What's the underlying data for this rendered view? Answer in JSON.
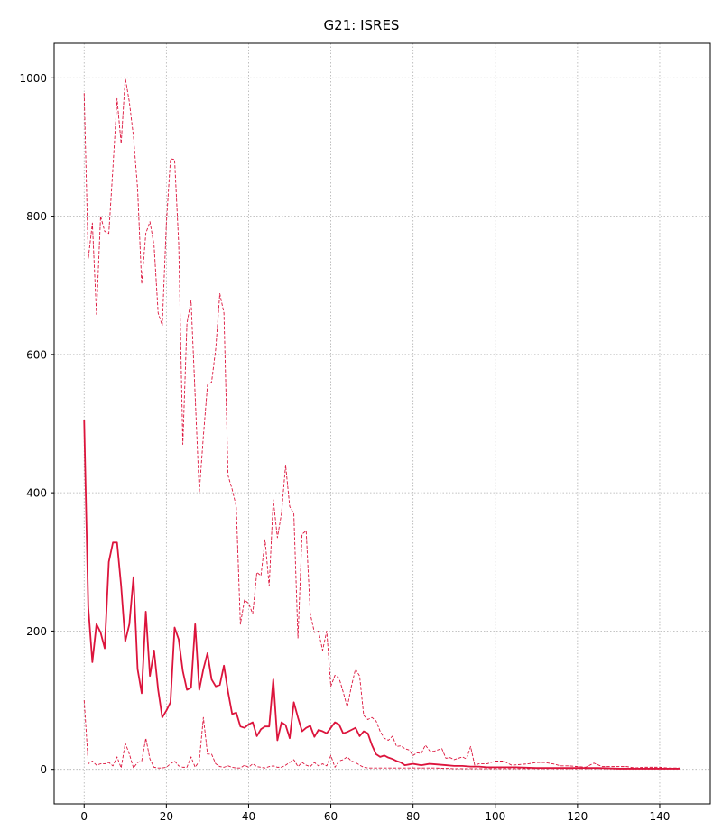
{
  "chart_data": {
    "type": "line",
    "title": "G21: ISRES",
    "xlabel": "",
    "ylabel": "",
    "xlim": [
      -7.3,
      152.3
    ],
    "ylim": [
      -50,
      1050
    ],
    "xticks": [
      0,
      20,
      40,
      60,
      80,
      100,
      120,
      140
    ],
    "xtick_labels": [
      "0",
      "20",
      "40",
      "60",
      "80",
      "100",
      "120",
      "140"
    ],
    "yticks": [
      0,
      200,
      400,
      600,
      800,
      1000
    ],
    "ytick_labels": [
      "0",
      "200",
      "400",
      "600",
      "800",
      "1000"
    ],
    "grid": true,
    "legend": "none",
    "series": [
      {
        "role": "mean",
        "style": "solid",
        "color": "#dc143c",
        "x": [
          0,
          1,
          2,
          3,
          4,
          5,
          6,
          7,
          8,
          9,
          10,
          11,
          12,
          13,
          14,
          15,
          16,
          17,
          18,
          19,
          20,
          21,
          22,
          23,
          24,
          25,
          26,
          27,
          28,
          29,
          30,
          31,
          32,
          33,
          34,
          35,
          36,
          37,
          38,
          39,
          40,
          41,
          42,
          43,
          44,
          45,
          46,
          47,
          48,
          49,
          50,
          51,
          52,
          53,
          54,
          55,
          56,
          57,
          58,
          59,
          60,
          61,
          62,
          63,
          64,
          65,
          66,
          67,
          68,
          69,
          70,
          71,
          72,
          73,
          74,
          75,
          76,
          77,
          78,
          79,
          80,
          82,
          84,
          86,
          88,
          90,
          92,
          94,
          96,
          98,
          100,
          105,
          110,
          115,
          120,
          125,
          130,
          135,
          140,
          145
        ],
        "y": [
          505,
          235,
          155,
          210,
          198,
          175,
          300,
          328,
          328,
          265,
          185,
          210,
          278,
          145,
          110,
          228,
          135,
          172,
          115,
          75,
          85,
          97,
          205,
          188,
          142,
          115,
          118,
          210,
          115,
          145,
          168,
          130,
          120,
          122,
          150,
          112,
          80,
          82,
          62,
          60,
          65,
          68,
          48,
          58,
          62,
          62,
          130,
          42,
          68,
          64,
          45,
          97,
          75,
          55,
          60,
          63,
          47,
          57,
          55,
          52,
          60,
          68,
          65,
          52,
          54,
          57,
          60,
          48,
          55,
          52,
          35,
          22,
          18,
          20,
          17,
          15,
          12,
          10,
          6,
          7,
          8,
          6,
          8,
          7,
          6,
          5,
          5,
          4,
          4,
          3,
          3,
          3,
          2,
          2,
          2,
          2,
          1,
          1,
          1,
          1
        ]
      },
      {
        "role": "max",
        "style": "dashed",
        "color": "#dc143c",
        "x": [
          0,
          1,
          2,
          3,
          4,
          5,
          6,
          7,
          8,
          9,
          10,
          11,
          12,
          13,
          14,
          15,
          16,
          17,
          18,
          19,
          20,
          21,
          22,
          23,
          24,
          25,
          26,
          27,
          28,
          29,
          30,
          31,
          32,
          33,
          34,
          35,
          36,
          37,
          38,
          39,
          40,
          41,
          42,
          43,
          44,
          45,
          46,
          47,
          48,
          49,
          50,
          51,
          52,
          53,
          54,
          55,
          56,
          57,
          58,
          59,
          60,
          61,
          62,
          63,
          64,
          65,
          66,
          67,
          68,
          69,
          70,
          71,
          72,
          73,
          74,
          75,
          76,
          77,
          78,
          79,
          80,
          81,
          82,
          83,
          84,
          85,
          86,
          87,
          88,
          89,
          90,
          91,
          92,
          93,
          94,
          95,
          96,
          98,
          100,
          102,
          104,
          106,
          108,
          110,
          112,
          114,
          116,
          118,
          120,
          122,
          124,
          126,
          128,
          130,
          132,
          134,
          136,
          138,
          140,
          142,
          145
        ],
        "y": [
          978,
          738,
          790,
          658,
          800,
          778,
          775,
          870,
          970,
          905,
          1000,
          965,
          915,
          840,
          702,
          775,
          792,
          758,
          660,
          642,
          790,
          883,
          882,
          760,
          470,
          645,
          678,
          540,
          400,
          482,
          556,
          560,
          608,
          688,
          660,
          425,
          405,
          380,
          210,
          245,
          240,
          225,
          285,
          280,
          332,
          265,
          390,
          335,
          370,
          440,
          380,
          370,
          190,
          340,
          345,
          225,
          198,
          200,
          172,
          200,
          120,
          136,
          132,
          112,
          90,
          120,
          145,
          135,
          78,
          72,
          75,
          70,
          55,
          45,
          42,
          48,
          33,
          34,
          30,
          28,
          20,
          24,
          23,
          35,
          27,
          26,
          28,
          30,
          16,
          17,
          14,
          16,
          18,
          15,
          33,
          6,
          8,
          8,
          12,
          12,
          6,
          7,
          8,
          10,
          10,
          8,
          5,
          5,
          4,
          3,
          9,
          4,
          4,
          4,
          4,
          2,
          3,
          3,
          3,
          2,
          2
        ]
      },
      {
        "role": "min",
        "style": "dashed",
        "color": "#dc143c",
        "x": [
          0,
          1,
          2,
          3,
          4,
          5,
          6,
          7,
          8,
          9,
          10,
          11,
          12,
          13,
          14,
          15,
          16,
          17,
          18,
          19,
          20,
          21,
          22,
          23,
          24,
          25,
          26,
          27,
          28,
          29,
          30,
          31,
          32,
          33,
          34,
          35,
          36,
          37,
          38,
          39,
          40,
          41,
          42,
          43,
          44,
          45,
          46,
          47,
          48,
          49,
          50,
          51,
          52,
          53,
          54,
          55,
          56,
          57,
          58,
          59,
          60,
          61,
          62,
          63,
          64,
          65,
          66,
          67,
          68,
          69,
          70,
          72,
          75,
          80,
          85,
          90,
          95,
          100,
          105,
          110,
          115,
          120,
          125,
          130,
          135,
          140,
          145
        ],
        "y": [
          100,
          8,
          12,
          6,
          8,
          8,
          10,
          5,
          18,
          2,
          38,
          22,
          2,
          10,
          12,
          45,
          15,
          3,
          2,
          2,
          3,
          8,
          12,
          5,
          3,
          3,
          18,
          3,
          12,
          75,
          22,
          22,
          8,
          4,
          3,
          5,
          3,
          2,
          2,
          6,
          3,
          8,
          4,
          3,
          2,
          4,
          5,
          3,
          3,
          6,
          10,
          14,
          4,
          10,
          6,
          4,
          10,
          5,
          8,
          5,
          20,
          3,
          12,
          14,
          18,
          12,
          10,
          6,
          3,
          2,
          2,
          2,
          2,
          2,
          2,
          1,
          1,
          1,
          1,
          1,
          1,
          1,
          1,
          1,
          1,
          1,
          1
        ]
      }
    ]
  }
}
